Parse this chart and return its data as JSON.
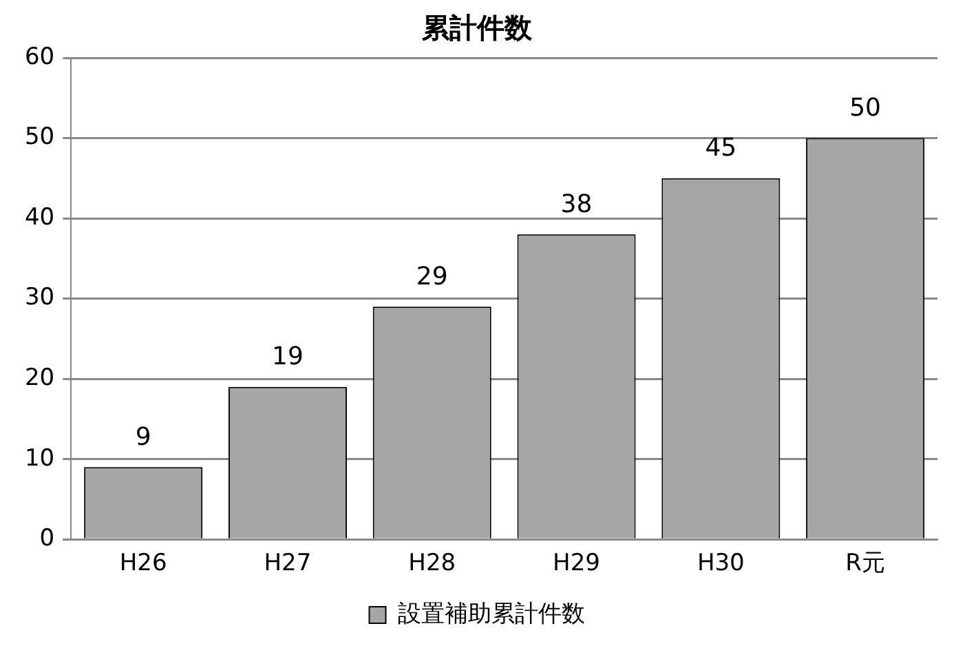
{
  "chart_data": {
    "type": "bar",
    "title": "累計件数",
    "categories": [
      "H26",
      "H27",
      "H28",
      "H29",
      "H30",
      "R元"
    ],
    "series": [
      {
        "name": "設置補助累計件数",
        "color": "#a6a6a6",
        "values": [
          9,
          19,
          29,
          38,
          45,
          50
        ]
      }
    ],
    "ylim": [
      0,
      60
    ],
    "yticks": [
      0,
      10,
      20,
      30,
      40,
      50,
      60
    ],
    "grid": "y",
    "legend": "bottom",
    "data_labels": true
  }
}
